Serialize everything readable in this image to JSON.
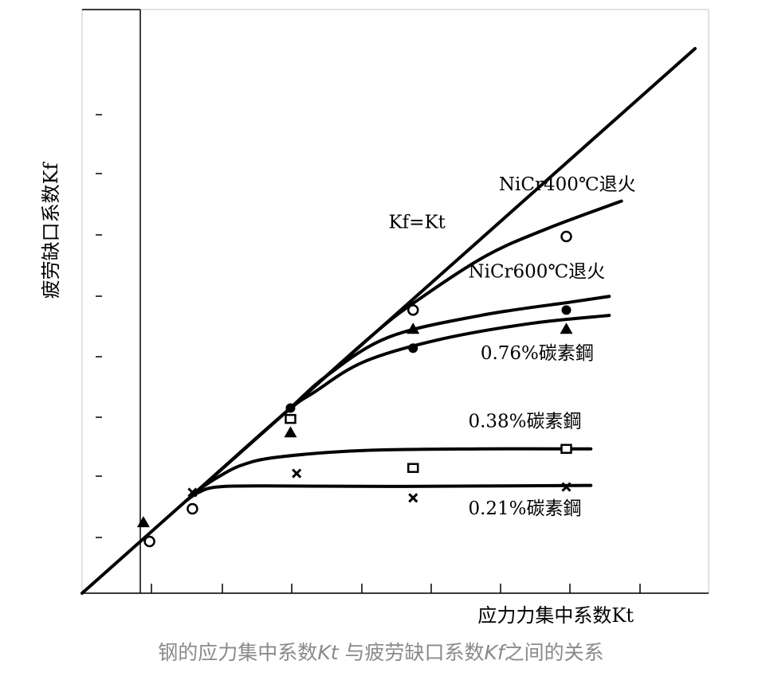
{
  "caption": {
    "part1": "钢的应力集中系数",
    "kt_symbol": "Kt",
    "part2": " 与疲劳缺口系数",
    "kf_symbol": "Kf",
    "part3": "之间的关系"
  },
  "chart_data": {
    "type": "line",
    "title": "",
    "xlabel": "应力力集中系数Kt",
    "ylabel": "疲劳缺口系数Kf",
    "x_ticks_count": 9,
    "y_ticks_count": 8,
    "grid": false,
    "series": [
      {
        "name": "Kf=Kt",
        "style": "line",
        "points": [
          [
            0,
            0
          ],
          [
            10,
            10
          ]
        ]
      },
      {
        "name": "NiCr400℃退火",
        "style": "curve",
        "points": [
          [
            1.9,
            1.9
          ],
          [
            3.4,
            3.4
          ],
          [
            4.8,
            4.8
          ],
          [
            5.5,
            5.4
          ],
          [
            6.6,
            6.2
          ],
          [
            7.6,
            6.7
          ],
          [
            8.8,
            7.2
          ]
        ]
      },
      {
        "name": "NiCr600℃退火",
        "style": "curve",
        "points": [
          [
            1.9,
            1.9
          ],
          [
            3.3,
            3.3
          ],
          [
            4.0,
            4.0
          ],
          [
            5.0,
            4.7
          ],
          [
            6.5,
            5.1
          ],
          [
            8.0,
            5.35
          ],
          [
            8.6,
            5.45
          ]
        ]
      },
      {
        "name": "0.76%碳素鋼",
        "style": "curve",
        "points": [
          [
            1.9,
            1.9
          ],
          [
            3.3,
            3.3
          ],
          [
            3.8,
            3.7
          ],
          [
            4.6,
            4.25
          ],
          [
            5.8,
            4.65
          ],
          [
            7.3,
            4.95
          ],
          [
            8.6,
            5.1
          ]
        ]
      },
      {
        "name": "0.38%碳素鋼",
        "style": "curve",
        "points": [
          [
            1.9,
            1.9
          ],
          [
            2.2,
            2.12
          ],
          [
            2.6,
            2.35
          ],
          [
            3.2,
            2.5
          ],
          [
            4.6,
            2.62
          ],
          [
            6.5,
            2.65
          ],
          [
            8.3,
            2.65
          ]
        ]
      },
      {
        "name": "0.21%碳素鋼",
        "style": "curve",
        "points": [
          [
            1.7,
            1.7
          ],
          [
            1.9,
            1.85
          ],
          [
            2.2,
            1.95
          ],
          [
            3.0,
            1.97
          ],
          [
            5.0,
            1.96
          ],
          [
            8.3,
            1.98
          ]
        ]
      }
    ],
    "markers": [
      {
        "shape": "circle-open",
        "points": [
          [
            1.1,
            0.95
          ],
          [
            1.8,
            1.55
          ],
          [
            5.4,
            5.2
          ],
          [
            7.9,
            6.55
          ]
        ]
      },
      {
        "shape": "circle-filled",
        "points": [
          [
            3.4,
            3.4
          ],
          [
            5.4,
            4.5
          ],
          [
            7.9,
            5.2
          ]
        ]
      },
      {
        "shape": "triangle",
        "points": [
          [
            1.0,
            1.3
          ],
          [
            3.4,
            2.95
          ],
          [
            5.4,
            4.85
          ],
          [
            7.9,
            4.85
          ]
        ]
      },
      {
        "shape": "square",
        "points": [
          [
            3.4,
            3.2
          ],
          [
            5.4,
            2.3
          ],
          [
            7.9,
            2.65
          ]
        ]
      },
      {
        "shape": "cross",
        "points": [
          [
            1.8,
            1.85
          ],
          [
            3.5,
            2.2
          ],
          [
            5.4,
            1.75
          ],
          [
            7.9,
            1.95
          ]
        ]
      }
    ],
    "annotations": [
      {
        "text": "Kf=Kt",
        "at": [
          5.0,
          6.7
        ]
      },
      {
        "text": "NiCr400℃退火",
        "at": [
          6.8,
          7.4
        ]
      },
      {
        "text": "NiCr600℃退火",
        "at": [
          6.3,
          5.8
        ]
      },
      {
        "text": "0.76%碳素鋼",
        "at": [
          6.5,
          4.3
        ]
      },
      {
        "text": "0.38%碳素鋼",
        "at": [
          6.3,
          3.05
        ]
      },
      {
        "text": "0.21%碳素鋼",
        "at": [
          6.3,
          1.45
        ]
      }
    ]
  }
}
